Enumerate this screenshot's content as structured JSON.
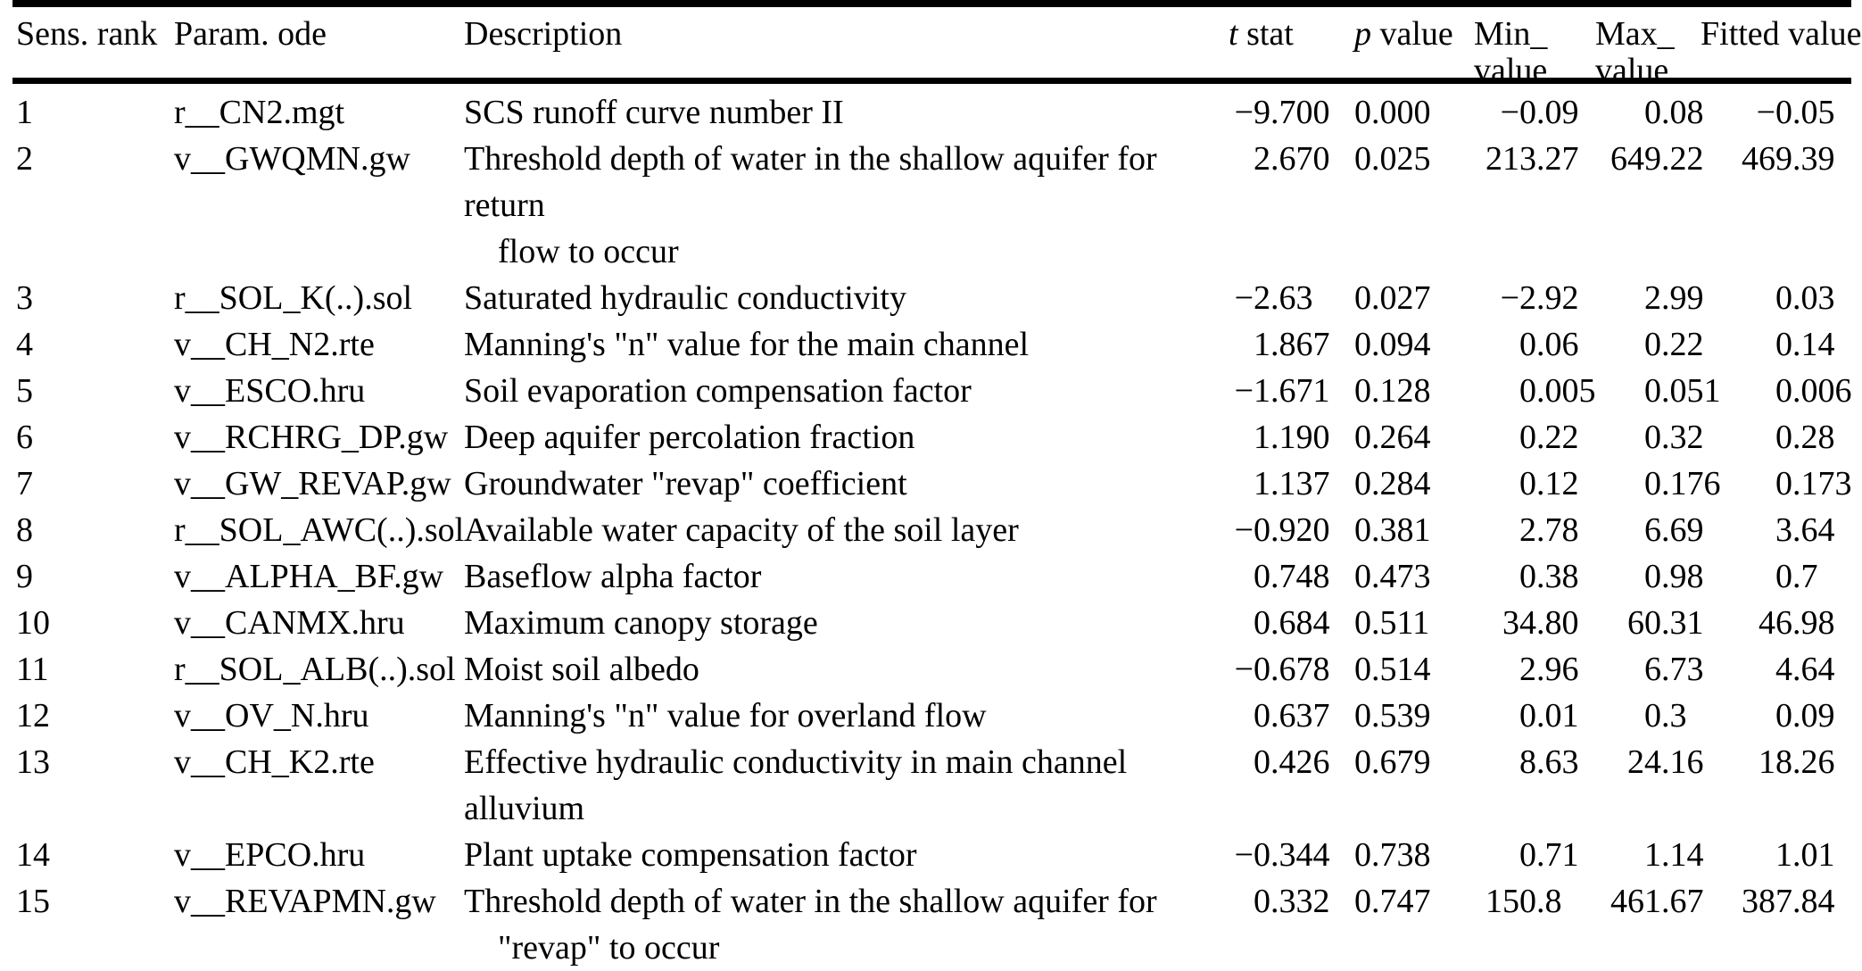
{
  "table": {
    "headers": {
      "sens": "Sens. rank",
      "param": "Param. ode",
      "desc": "Description",
      "t_italic": "t",
      "t_rest": " stat",
      "p_italic": "p",
      "p_rest": " value",
      "min_line1": "Min_",
      "min_line2": "value",
      "max_line1": "Max_",
      "max_line2": "value",
      "fitted": "Fitted value"
    },
    "rows": [
      {
        "rank": "1",
        "param": "r__CN2.mgt",
        "desc": [
          "SCS runoff curve number II"
        ],
        "t": "−9.700",
        "p": "0.000",
        "min": "−0.09",
        "max": "0.08",
        "fitted": "−0.05"
      },
      {
        "rank": "2",
        "param": "v__GWQMN.gw",
        "desc": [
          "Threshold depth of water in the shallow aquifer for return",
          "flow to occur"
        ],
        "t": "2.670",
        "p": "0.025",
        "min": "213.27",
        "max": "649.22",
        "fitted": "469.39"
      },
      {
        "rank": "3",
        "param": "r__SOL_K(..).sol",
        "desc": [
          "Saturated hydraulic conductivity"
        ],
        "t": "−2.63",
        "p": "0.027",
        "min": "−2.92",
        "max": "2.99",
        "fitted": "0.03"
      },
      {
        "rank": "4",
        "param": "v__CH_N2.rte",
        "desc": [
          "Manning's \"n\" value for the main channel"
        ],
        "t": "1.867",
        "p": "0.094",
        "min": "0.06",
        "max": "0.22",
        "fitted": "0.14"
      },
      {
        "rank": "5",
        "param": "v__ESCO.hru",
        "desc": [
          "Soil evaporation compensation factor"
        ],
        "t": "−1.671",
        "p": "0.128",
        "min": "0.005",
        "max": "0.051",
        "fitted": "0.006"
      },
      {
        "rank": "6",
        "param": "v__RCHRG_DP.gw",
        "desc": [
          "Deep aquifer percolation fraction"
        ],
        "t": "1.190",
        "p": "0.264",
        "min": "0.22",
        "max": "0.32",
        "fitted": "0.28"
      },
      {
        "rank": "7",
        "param": "v__GW_REVAP.gw",
        "desc": [
          "Groundwater \"revap\" coefficient"
        ],
        "t": "1.137",
        "p": "0.284",
        "min": "0.12",
        "max": "0.176",
        "fitted": "0.173"
      },
      {
        "rank": "8",
        "param": "r__SOL_AWC(..).sol",
        "desc": [
          "Available water capacity of the soil layer"
        ],
        "t": "−0.920",
        "p": "0.381",
        "min": "2.78",
        "max": "6.69",
        "fitted": "3.64"
      },
      {
        "rank": "9",
        "param": "v__ALPHA_BF.gw",
        "desc": [
          "Baseflow alpha factor"
        ],
        "t": "0.748",
        "p": "0.473",
        "min": "0.38",
        "max": "0.98",
        "fitted": "0.7"
      },
      {
        "rank": "10",
        "param": "v__CANMX.hru",
        "desc": [
          "Maximum canopy storage"
        ],
        "t": "0.684",
        "p": "0.511",
        "min": "34.80",
        "max": "60.31",
        "fitted": "46.98"
      },
      {
        "rank": "11",
        "param": "r__SOL_ALB(..).sol",
        "desc": [
          "Moist soil albedo"
        ],
        "t": "−0.678",
        "p": "0.514",
        "min": "2.96",
        "max": "6.73",
        "fitted": "4.64"
      },
      {
        "rank": "12",
        "param": "v__OV_N.hru",
        "desc": [
          "Manning's \"n\" value for overland flow"
        ],
        "t": "0.637",
        "p": "0.539",
        "min": "0.01",
        "max": "0.3",
        "fitted": "0.09"
      },
      {
        "rank": "13",
        "param": "v__CH_K2.rte",
        "desc": [
          "Effective hydraulic conductivity in main channel alluvium"
        ],
        "t": "0.426",
        "p": "0.679",
        "min": "8.63",
        "max": "24.16",
        "fitted": "18.26"
      },
      {
        "rank": "14",
        "param": "v__EPCO.hru",
        "desc": [
          "Plant uptake compensation factor"
        ],
        "t": "−0.344",
        "p": "0.738",
        "min": "0.71",
        "max": "1.14",
        "fitted": "1.01"
      },
      {
        "rank": "15",
        "param": "v__REVAPMN.gw",
        "desc": [
          "Threshold depth of water in the shallow aquifer for",
          "\"revap\" to occur"
        ],
        "t": "0.332",
        "p": "0.747",
        "min": "150.8",
        "max": "461.67",
        "fitted": "387.84"
      }
    ]
  }
}
